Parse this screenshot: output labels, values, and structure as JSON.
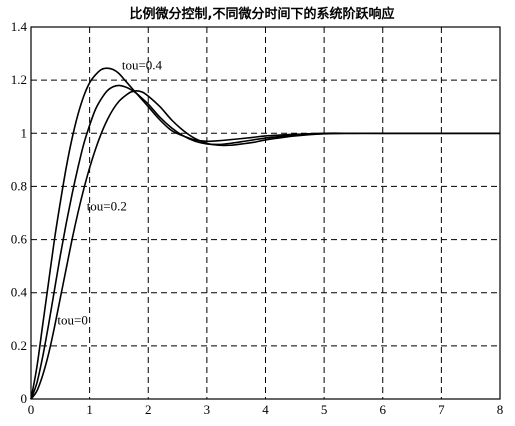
{
  "chart_data": {
    "type": "line",
    "title": "比例微分控制,不同微分时间下的系统阶跃响应",
    "xlim": [
      0,
      8
    ],
    "ylim": [
      0,
      1.4
    ],
    "xticks": [
      "0",
      "1",
      "2",
      "3",
      "4",
      "5",
      "6",
      "7",
      "8"
    ],
    "yticks": [
      "0",
      "0.2",
      "0.4",
      "0.6",
      "0.8",
      "1",
      "1.2",
      "1.4"
    ],
    "grid": true,
    "series": [
      {
        "name": "tou=0.4",
        "x": [
          0,
          0.1,
          0.2,
          0.3,
          0.4,
          0.5,
          0.6,
          0.7,
          0.8,
          0.9,
          1.0,
          1.1,
          1.2,
          1.3,
          1.4,
          1.5,
          1.6,
          1.7,
          1.8,
          2.0,
          2.2,
          2.4,
          2.6,
          2.8,
          3.0,
          3.2,
          3.5,
          3.8,
          4.0,
          4.5,
          5.0,
          5.5,
          6.0,
          7.0,
          8.0
        ],
        "y": [
          0,
          0.12,
          0.28,
          0.44,
          0.6,
          0.74,
          0.87,
          0.98,
          1.07,
          1.14,
          1.19,
          1.22,
          1.24,
          1.245,
          1.24,
          1.225,
          1.2,
          1.175,
          1.15,
          1.1,
          1.05,
          1.01,
          0.99,
          0.975,
          0.97,
          0.972,
          0.978,
          0.985,
          0.99,
          0.996,
          1.0,
          1.0,
          1.0,
          1.0,
          1.0
        ]
      },
      {
        "name": "tou=0.2",
        "x": [
          0,
          0.1,
          0.2,
          0.3,
          0.4,
          0.5,
          0.6,
          0.7,
          0.8,
          0.9,
          1.0,
          1.1,
          1.2,
          1.3,
          1.4,
          1.5,
          1.6,
          1.7,
          1.8,
          1.9,
          2.0,
          2.2,
          2.4,
          2.6,
          2.8,
          3.0,
          3.2,
          3.4,
          3.7,
          4.0,
          4.5,
          5.0,
          5.5,
          6.0,
          7.0,
          8.0
        ],
        "y": [
          0,
          0.06,
          0.16,
          0.28,
          0.41,
          0.54,
          0.66,
          0.77,
          0.87,
          0.96,
          1.03,
          1.09,
          1.13,
          1.16,
          1.175,
          1.18,
          1.175,
          1.165,
          1.15,
          1.13,
          1.11,
          1.06,
          1.02,
          0.99,
          0.97,
          0.96,
          0.958,
          0.962,
          0.972,
          0.982,
          0.993,
          0.999,
          1.0,
          1.0,
          1.0,
          1.0
        ]
      },
      {
        "name": "tou=0",
        "x": [
          0,
          0.1,
          0.2,
          0.3,
          0.4,
          0.5,
          0.6,
          0.7,
          0.8,
          0.9,
          1.0,
          1.1,
          1.2,
          1.3,
          1.4,
          1.5,
          1.6,
          1.7,
          1.8,
          1.9,
          2.0,
          2.2,
          2.4,
          2.6,
          2.8,
          3.0,
          3.2,
          3.4,
          3.6,
          3.8,
          4.0,
          4.5,
          5.0,
          5.5,
          6.0,
          7.0,
          8.0
        ],
        "y": [
          0,
          0.03,
          0.09,
          0.17,
          0.27,
          0.38,
          0.49,
          0.6,
          0.7,
          0.79,
          0.87,
          0.94,
          1.0,
          1.05,
          1.09,
          1.12,
          1.14,
          1.155,
          1.16,
          1.155,
          1.14,
          1.1,
          1.05,
          1.01,
          0.98,
          0.962,
          0.955,
          0.955,
          0.96,
          0.966,
          0.975,
          0.99,
          0.998,
          1.0,
          1.0,
          1.0,
          1.0
        ]
      }
    ],
    "annotations": [
      {
        "text": "tou=0.4",
        "x": 1.55,
        "y": 1.24
      },
      {
        "text": "tou=0.2",
        "x": 0.95,
        "y": 0.71
      },
      {
        "text": "tou=0",
        "x": 0.45,
        "y": 0.28
      }
    ]
  }
}
